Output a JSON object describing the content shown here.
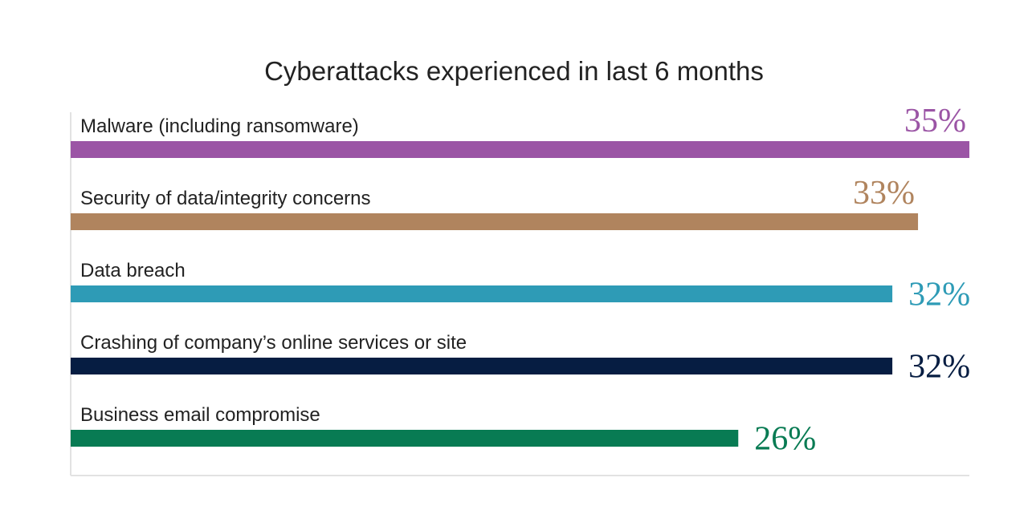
{
  "chart_data": {
    "type": "hbar",
    "title": "Cyberattacks experienced in last 6 months",
    "categories": [
      "Malware (including ransomware)",
      "Security of data/integrity concerns",
      "Data breach",
      "Crashing of company’s online services or site",
      "Business email compromise"
    ],
    "values": [
      35,
      33,
      32,
      32,
      26
    ],
    "value_labels": [
      "35%",
      "33%",
      "32%",
      "32%",
      "26%"
    ],
    "colors": [
      "#9b55a5",
      "#b0845e",
      "#2e9bb6",
      "#061d42",
      "#087b53"
    ],
    "xlim": [
      0,
      35
    ]
  }
}
